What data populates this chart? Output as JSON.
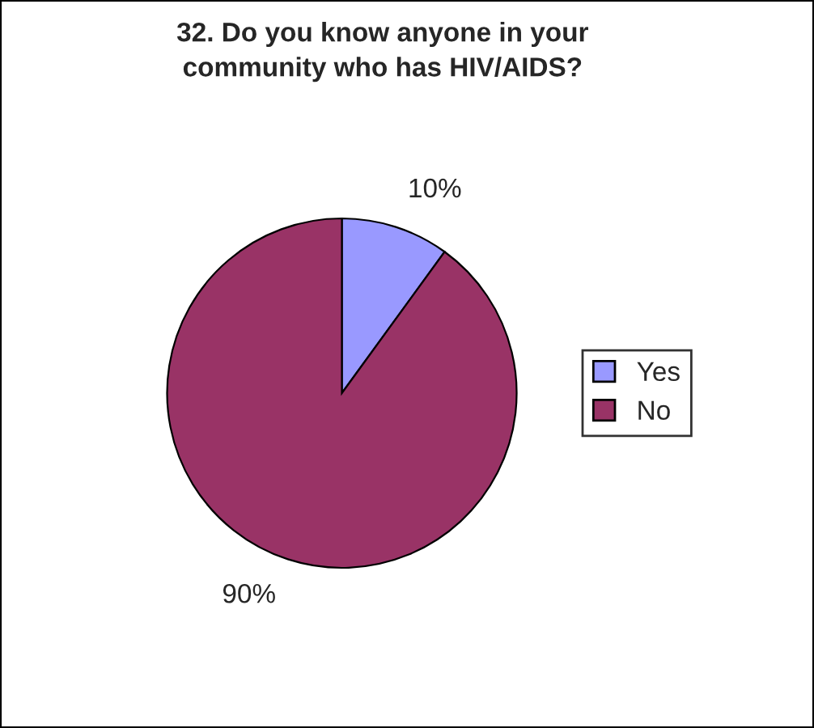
{
  "chart_data": {
    "type": "pie",
    "title": "32. Do you know anyone in your\ncommunity who has HIV/AIDS?",
    "categories": [
      "Yes",
      "No"
    ],
    "values": [
      10,
      90
    ],
    "colors": [
      "#9999ff",
      "#993366"
    ],
    "value_labels": [
      "10%",
      "90%"
    ],
    "legend": "right"
  }
}
